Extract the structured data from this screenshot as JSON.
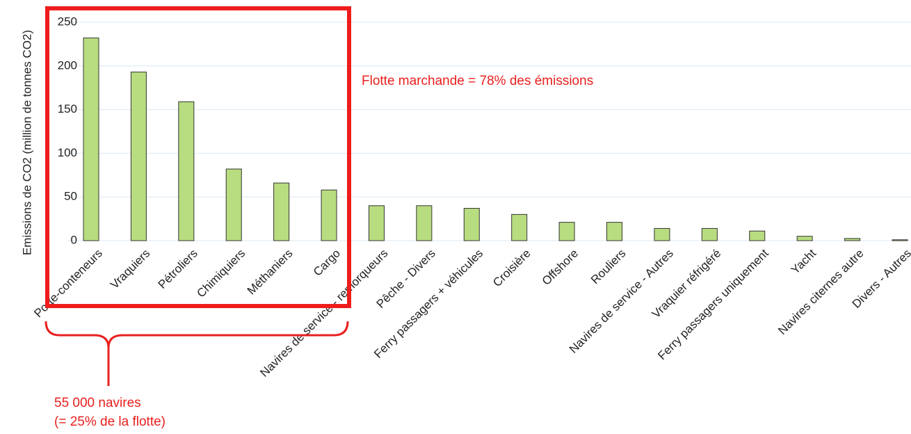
{
  "chart_data": {
    "type": "bar",
    "ylabel": "Emissions de CO2 (million de tonnes CO2)",
    "categories": [
      "Porte-conteneurs",
      "Vraquiers",
      "Pétroliers",
      "Chimiquiers",
      "Méthaniers",
      "Cargo",
      "Navires de service - remorqueurs",
      "Pêche - Divers",
      "Ferry passagers + véhicules",
      "Croisière",
      "Offshore",
      "Rouliers",
      "Navires de service - Autres",
      "Vraquier réfrigéré",
      "Ferry passagers uniquement",
      "Yacht",
      "Navires citernes autre",
      "Divers - Autres"
    ],
    "values": [
      232,
      193,
      159,
      82,
      66,
      58,
      40,
      40,
      37,
      30,
      21,
      21,
      14,
      14,
      11,
      5,
      2.5,
      1
    ],
    "color": "#b8dc80",
    "ylim": [
      0,
      250
    ],
    "yticks": [
      0,
      50,
      100,
      150,
      200,
      250
    ],
    "grid": true,
    "annotations": [
      "Flotte marchande = 78% des émissions",
      "55 000 navires",
      "(= 25% de la flotte)"
    ]
  }
}
